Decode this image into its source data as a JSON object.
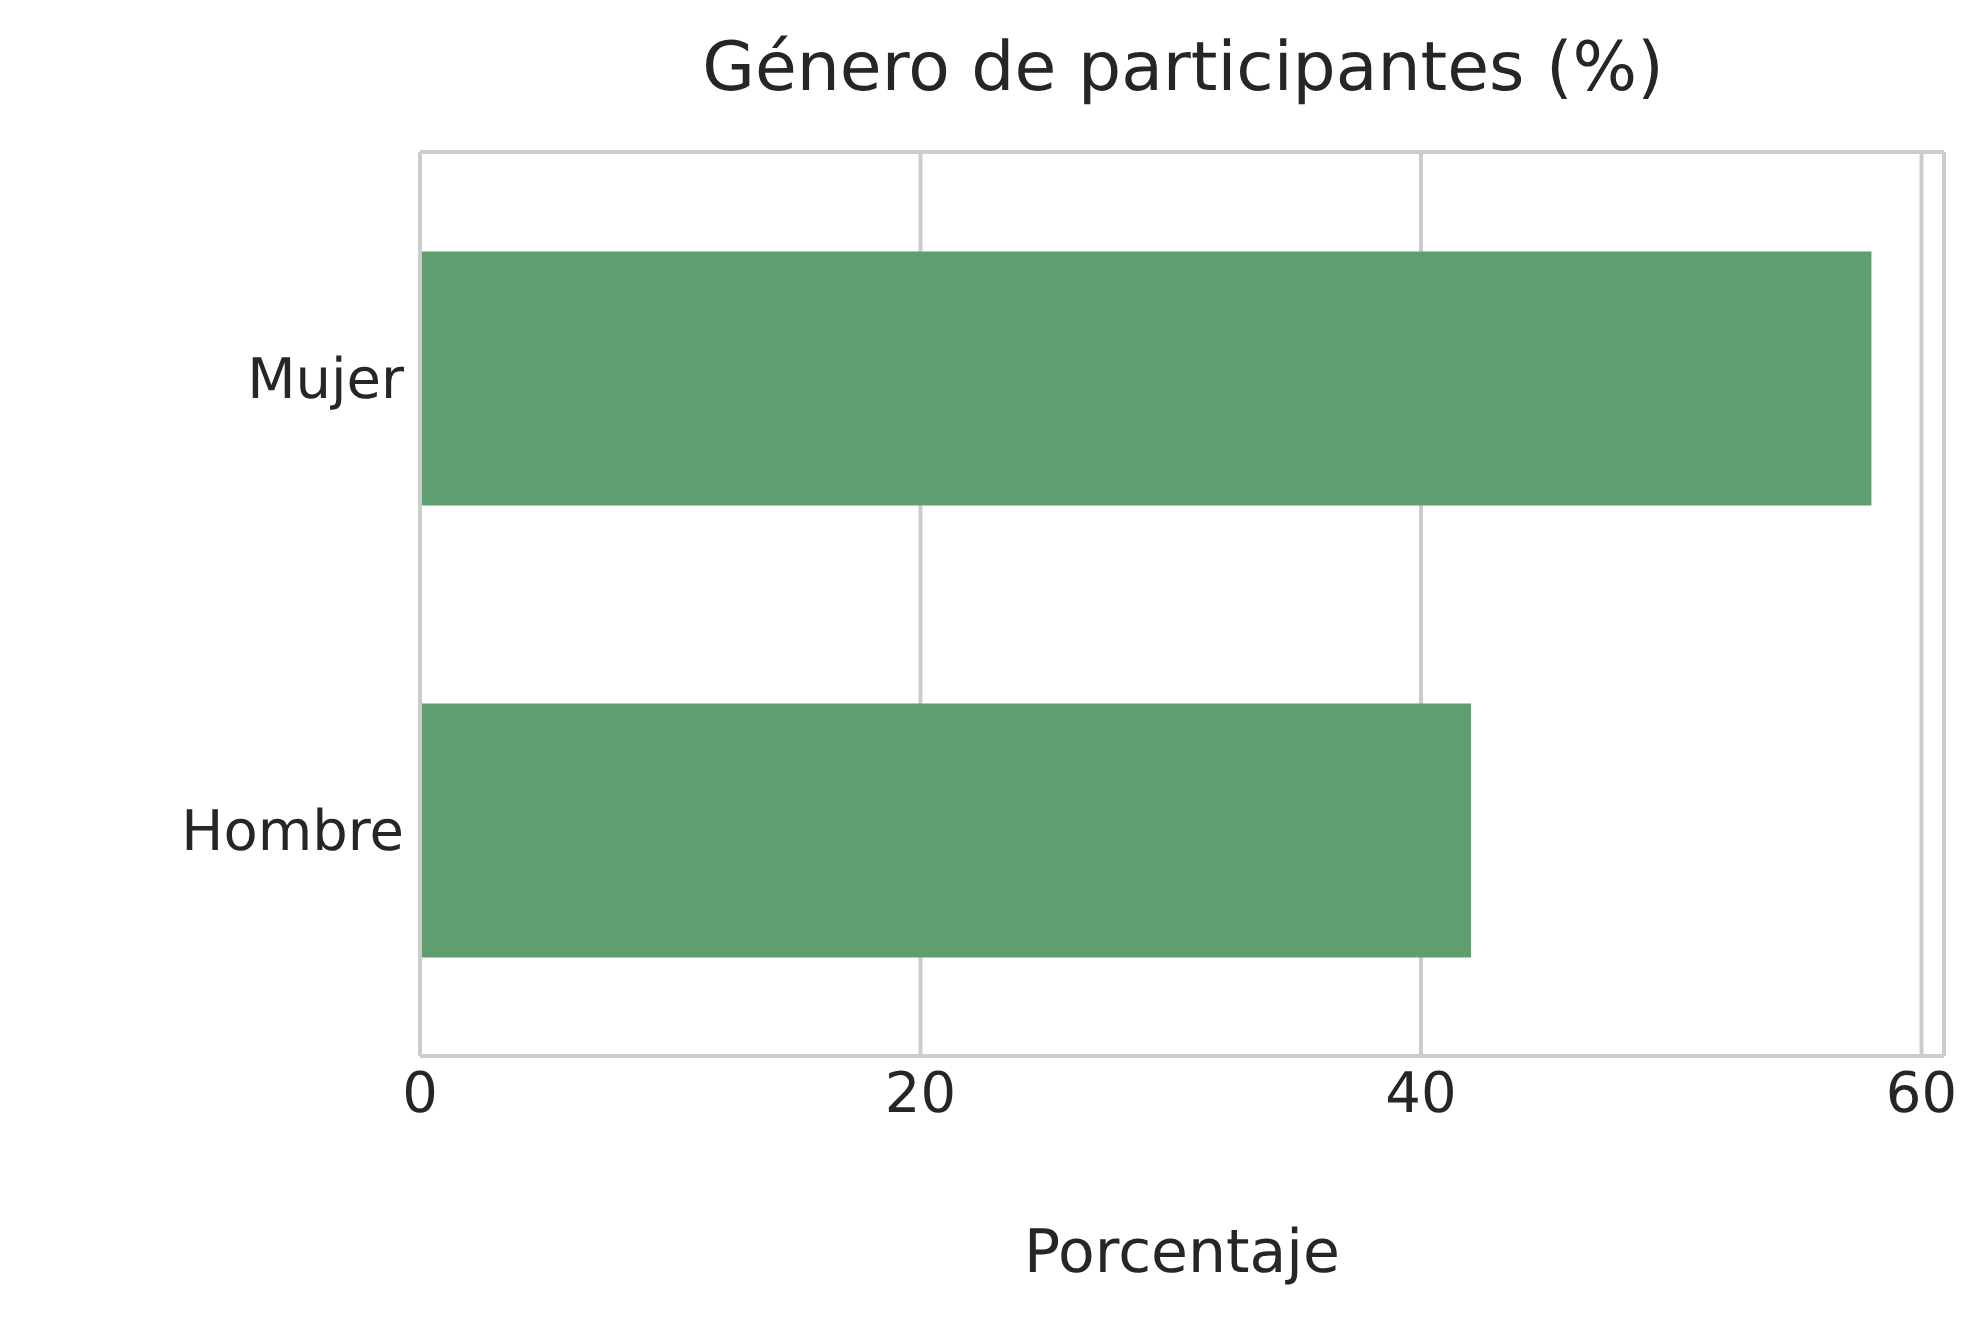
{
  "chart_data": {
    "type": "bar",
    "orientation": "horizontal",
    "title": "Género de participantes (%)",
    "xlabel": "Porcentaje",
    "categories": [
      "Mujer",
      "Hombre"
    ],
    "values": [
      58,
      42
    ],
    "color": "#5f9e6e",
    "xlim": [
      0,
      60.9
    ],
    "xticks": [
      0,
      20,
      40,
      60
    ],
    "grid": "x"
  }
}
